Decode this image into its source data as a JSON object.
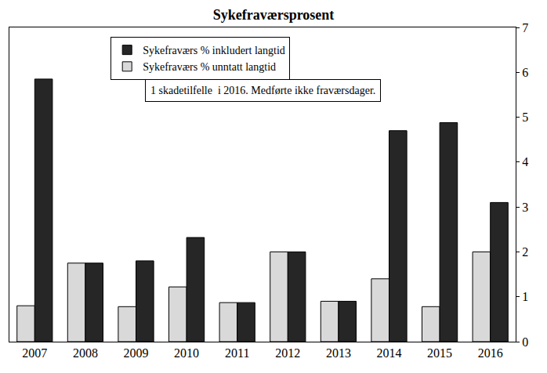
{
  "chart_data": {
    "type": "bar",
    "title": "Sykefraværsprosent",
    "categories": [
      "2007",
      "2008",
      "2009",
      "2010",
      "2011",
      "2012",
      "2013",
      "2014",
      "2015",
      "2016"
    ],
    "series": [
      {
        "name": "Sykefraværs % unntatt langtid",
        "color": "#d9d9d9",
        "values": [
          0.8,
          1.75,
          0.78,
          1.22,
          0.87,
          2.0,
          0.9,
          1.4,
          0.78,
          2.0
        ]
      },
      {
        "name": "Sykefraværs % inkludert langtid",
        "color": "#262626",
        "values": [
          5.85,
          1.75,
          1.8,
          2.32,
          0.87,
          2.0,
          0.9,
          4.7,
          4.88,
          3.1
        ]
      }
    ],
    "ylim": [
      0,
      7
    ],
    "yticks": [
      0,
      1,
      2,
      3,
      4,
      5,
      6,
      7
    ],
    "grid": false,
    "legend": "upper left",
    "annotations": [
      "1 skadetilfelle  i 2016. Medførte ikke fraværsdager."
    ]
  }
}
